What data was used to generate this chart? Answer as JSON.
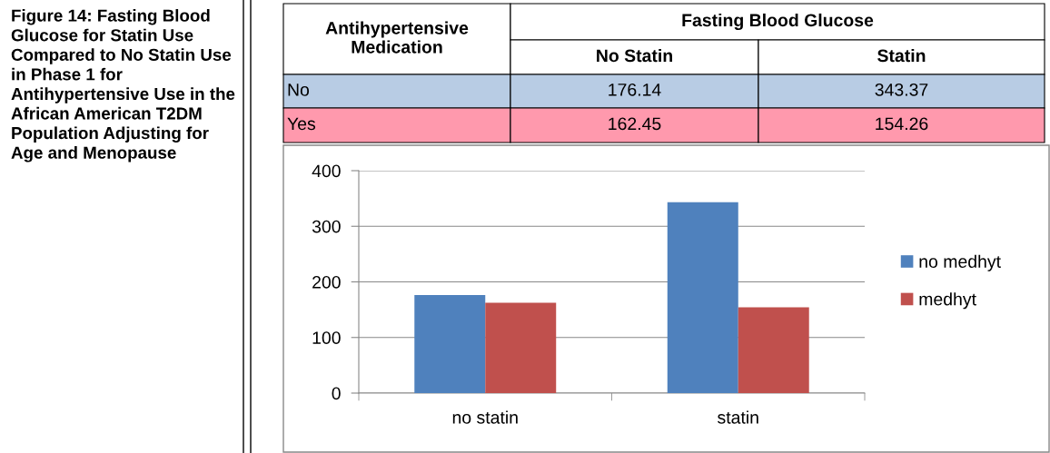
{
  "chart_data": {
    "type": "bar",
    "title": "Figure 14: Fasting Blood Glucose for Statin Use Compared to No Statin Use in Phase 1 for Antihypertensive Use in the African American T2DM Population Adjusting for Age and Menopause",
    "categories": [
      "no statin",
      "statin"
    ],
    "series": [
      {
        "name": "no medhyt",
        "color": "#4f81bd",
        "values": [
          176.14,
          343.37
        ]
      },
      {
        "name": "medhyt",
        "color": "#c0504d",
        "values": [
          162.45,
          154.26
        ]
      }
    ],
    "annotations": [
      "Antihypertensive Medication",
      "Fasting Blood Glucose",
      "No Statin",
      "Statin",
      "No",
      "176.14",
      "343.37",
      "Yes",
      "162.45",
      "154.26"
    ],
    "ylim": [
      0,
      400
    ],
    "yticks": [
      0,
      100,
      200,
      300,
      400
    ],
    "grid": "y",
    "legend": "right"
  }
}
